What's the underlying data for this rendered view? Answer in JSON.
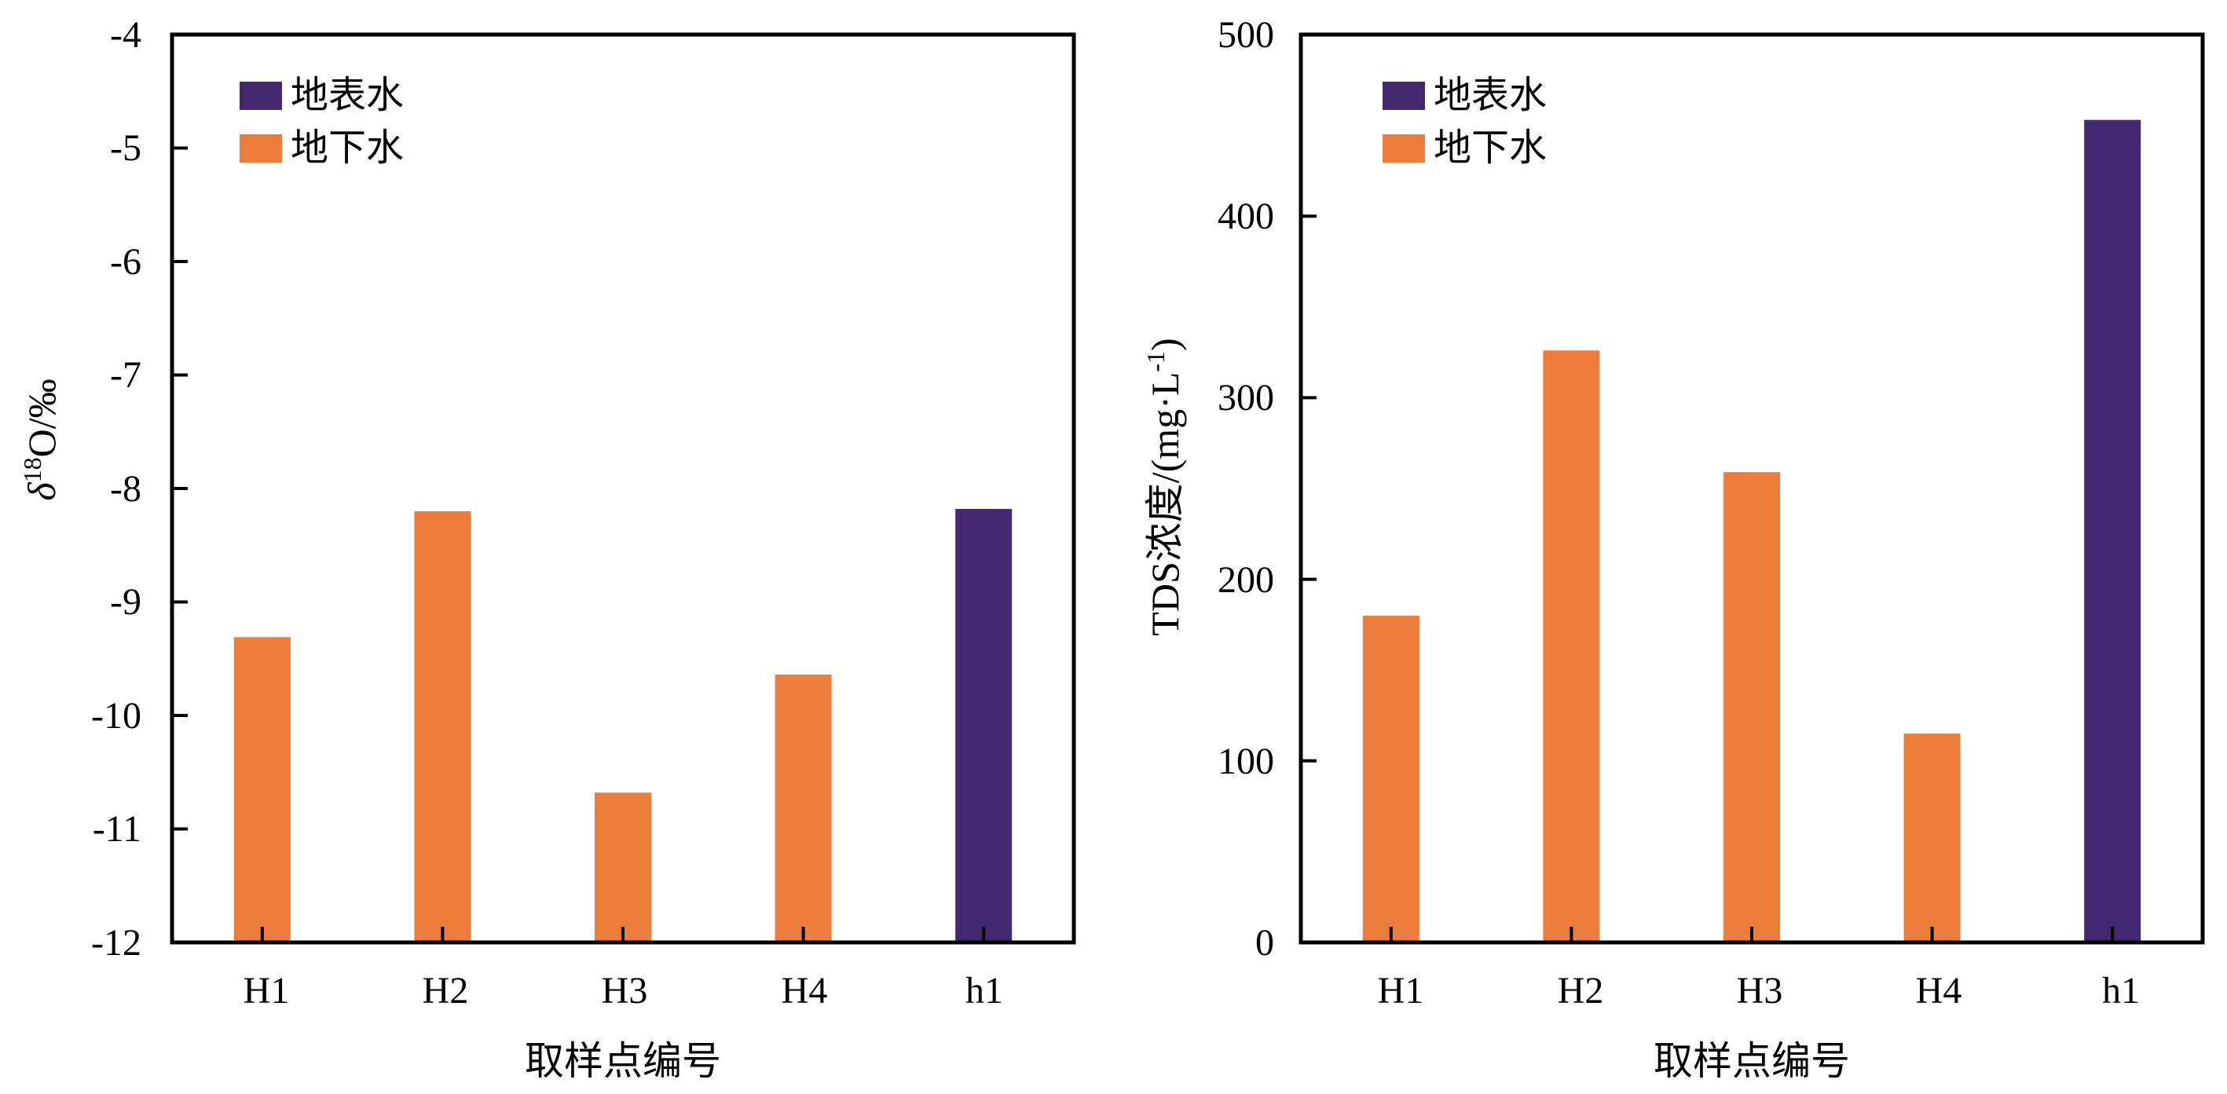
{
  "colors": {
    "surface_water": "#42296F",
    "groundwater": "#ED7D3A"
  },
  "chart_data": [
    {
      "type": "bar",
      "categories": [
        "H1",
        "H2",
        "H3",
        "H4",
        "h1"
      ],
      "series": [
        {
          "name": "地表水",
          "color": "#42296F",
          "values": [
            null,
            null,
            null,
            null,
            -8.18
          ]
        },
        {
          "name": "地下水",
          "color": "#ED7D3A",
          "values": [
            -9.31,
            -8.2,
            -10.68,
            -9.64,
            null
          ]
        }
      ],
      "title": "",
      "xlabel": "取样点编号",
      "ylabel_delta": "δ",
      "ylabel_sup": "18",
      "ylabel_rest": "O/‰",
      "ylim": [
        -12,
        -4
      ],
      "yticks": [
        "-4",
        "-5",
        "-6",
        "-7",
        "-8",
        "-9",
        "-10",
        "-11",
        "-12"
      ],
      "baseline": -12,
      "legend": "top-left",
      "grid": false
    },
    {
      "type": "bar",
      "categories": [
        "H1",
        "H2",
        "H3",
        "H4",
        "h1"
      ],
      "series": [
        {
          "name": "地表水",
          "color": "#42296F",
          "values": [
            null,
            null,
            null,
            null,
            453
          ]
        },
        {
          "name": "地下水",
          "color": "#ED7D3A",
          "values": [
            180,
            326,
            259,
            115,
            null
          ]
        }
      ],
      "title": "",
      "xlabel": "取样点编号",
      "ylabel_main": "TDS浓度/(mg·L",
      "ylabel_sup": "-1",
      "ylabel_end": ")",
      "ylim": [
        0,
        500
      ],
      "yticks": [
        "500",
        "400",
        "300",
        "200",
        "100",
        "0"
      ],
      "baseline": 0,
      "legend": "top-left",
      "grid": false
    }
  ]
}
